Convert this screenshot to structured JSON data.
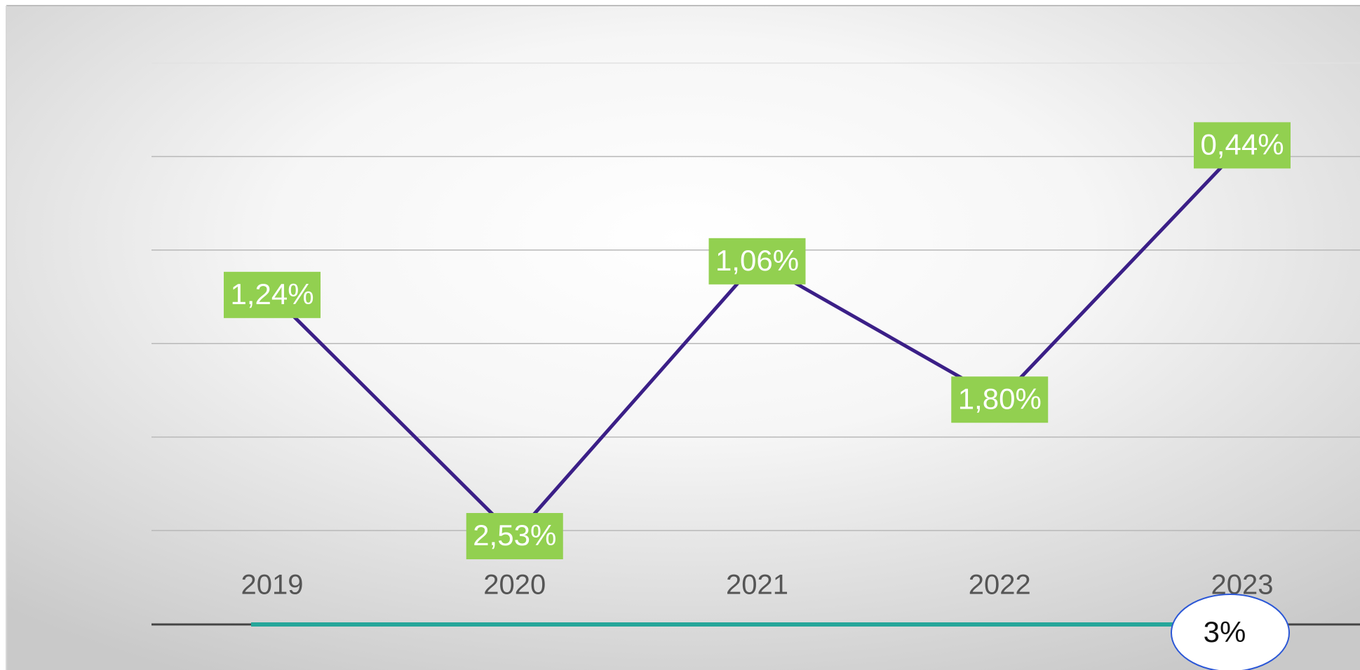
{
  "chart_data": {
    "type": "line",
    "categories": [
      "2019",
      "2020",
      "2021",
      "2022",
      "2023"
    ],
    "series": [
      {
        "color": "#3b1f87",
        "values": [
          1.24,
          2.53,
          1.06,
          1.8,
          0.44
        ],
        "value_labels": [
          "1,24%",
          "2,53%",
          "1,06%",
          "1,80%",
          "0,44%"
        ]
      }
    ],
    "ylim": [
      0,
      2.5
    ],
    "yticks": [
      0,
      0.5,
      1,
      1.5,
      2,
      2.5
    ],
    "y_inverted": true,
    "grid": true,
    "label_color": "#92d050",
    "badge": "3%"
  }
}
